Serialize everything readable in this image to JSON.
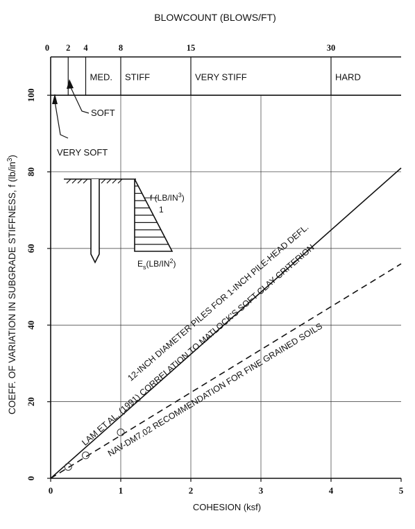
{
  "chart_data": {
    "type": "line",
    "title": "",
    "top_axis": {
      "label": "BLOWCOUNT (BLOWS/FT)",
      "ticks": [
        {
          "label": "0",
          "x": 0
        },
        {
          "label": "2",
          "x": 0.25
        },
        {
          "label": "4",
          "x": 0.5
        },
        {
          "label": "8",
          "x": 1.0
        },
        {
          "label": "15",
          "x": 2.0
        },
        {
          "label": "30",
          "x": 4.0
        }
      ]
    },
    "consistency": [
      {
        "name": "MED.",
        "x0": 0.5,
        "x1": 1.0
      },
      {
        "name": "STIFF",
        "x0": 1.0,
        "x1": 2.0
      },
      {
        "name": "VERY STIFF",
        "x0": 2.0,
        "x1": 4.0
      },
      {
        "name": "HARD",
        "x0": 4.0,
        "x1": 5.0
      }
    ],
    "soft_label": "SOFT",
    "very_soft_label": "VERY SOFT",
    "xlabel": "COHESION (ksf)",
    "ylabel": "COEFF. OF VARIATION IN SUBGRADE STIFFNESS, f (lb/in",
    "ylabel_sup": "3",
    "ylabel_end": ")",
    "xlim": [
      0,
      5
    ],
    "ylim": [
      0,
      110
    ],
    "xticks": [
      0,
      1,
      2,
      3,
      4,
      5
    ],
    "yticks": [
      0,
      20,
      40,
      60,
      80,
      100
    ],
    "grid": true,
    "series": [
      {
        "name": "",
        "style": "solid",
        "x": [
          0,
          5
        ],
        "y": [
          0,
          81
        ],
        "label_lines": [
          "12-INCH DIAMETER PILES FOR 1-INCH PILE-HEAD DEFL.",
          "LAM ET AL. (1991) CORRELATION TO MATLOCK'S SOFT CLAY CRITERION"
        ]
      },
      {
        "name": "",
        "style": "dashed",
        "x": [
          0,
          5
        ],
        "y": [
          0,
          56
        ],
        "label_lines": [
          "NAV-DM7.02 RECOMMENDATION FOR FINE GRAINED SOILS"
        ]
      }
    ],
    "circle_markers": [
      {
        "x": 0.25,
        "y": 3
      },
      {
        "x": 0.5,
        "y": 6
      },
      {
        "x": 1.0,
        "y": 12
      }
    ],
    "inset": {
      "f_label": "f (LB/IN",
      "f_sup": "3",
      "f_end": ")",
      "slope": "1",
      "es_label": "E",
      "es_sub": "s",
      "es_rest": "(LB/IN",
      "es_sup": "2",
      "es_end": ")"
    }
  }
}
